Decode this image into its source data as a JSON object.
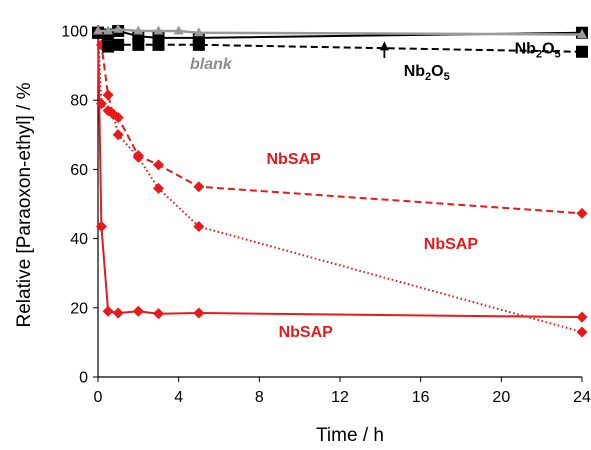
{
  "chart_data": {
    "type": "line",
    "xlabel": "Time / h",
    "ylabel": "Relative [Paraoxon-ethyl] / %",
    "xlim": [
      0,
      24
    ],
    "ylim": [
      0,
      100
    ],
    "x_ticks": [
      "0",
      "4",
      "8",
      "12",
      "16",
      "20",
      "24"
    ],
    "y_ticks": [
      "0",
      "20",
      "40",
      "60",
      "80",
      "100"
    ],
    "grid": false,
    "series": [
      {
        "color": "#e8191b",
        "line_style": "solid",
        "marker": "diamond",
        "x": [
          0,
          0.17,
          0.5,
          1,
          2,
          3,
          5,
          24
        ],
        "y": [
          100,
          43.5,
          19,
          18.5,
          19,
          18.3,
          18.5,
          17.3
        ]
      },
      {
        "color": "#e8191b",
        "line_style": "dashed",
        "marker": "diamond",
        "x": [
          0,
          0.17,
          0.5,
          0.75,
          1,
          2,
          3,
          5,
          24
        ],
        "y": [
          100,
          96,
          81.5,
          76,
          75,
          64,
          61.3,
          55,
          47.3
        ]
      },
      {
        "color": "#e8191b",
        "line_style": "dotted",
        "marker": "diamond",
        "x": [
          0,
          0.17,
          0.5,
          0.75,
          1,
          2,
          3,
          5,
          24
        ],
        "y": [
          100,
          79,
          77,
          76,
          70,
          63.5,
          54.5,
          43.5,
          13
        ]
      },
      {
        "color": "#000000",
        "line_style": "solid",
        "marker": "square",
        "x": [
          0,
          0.5,
          1,
          2,
          3,
          5,
          24
        ],
        "y": [
          99.5,
          99,
          100,
          98.5,
          98,
          98,
          99.5
        ]
      },
      {
        "color": "#000000",
        "line_style": "dashed",
        "marker": "square",
        "x": [
          0,
          0.5,
          1,
          2,
          3,
          5,
          24
        ],
        "y": [
          99.5,
          95.5,
          96,
          96,
          96,
          96,
          94
        ]
      },
      {
        "color": "#999999",
        "line_style": "solid",
        "marker": "triangle",
        "x": [
          0,
          0.5,
          1,
          2,
          3,
          4,
          5,
          24
        ],
        "y": [
          100,
          100,
          100.5,
          100,
          100,
          100,
          99.5,
          99
        ]
      }
    ],
    "annotations": [
      {
        "text": "blank",
        "color": "#8c8c8c",
        "italic": true,
        "x": 5.6,
        "y": 89
      },
      {
        "text": "Nb",
        "sub": "2",
        "text2": "O",
        "sub2": "5",
        "color": "#000000",
        "x": 16.3,
        "y": 87,
        "arrow_to": [
          14.2,
          97
        ]
      },
      {
        "text": "Nb",
        "sub": "2",
        "text2": "O",
        "sub2": "5",
        "color": "#000000",
        "x": 21.8,
        "y": 93.5
      },
      {
        "text": "NbSAP",
        "color": "#e8191b",
        "x": 9.7,
        "y": 61.5
      },
      {
        "text": "NbSAP",
        "color": "#e8191b",
        "x": 17.5,
        "y": 37
      },
      {
        "text": "NbSAP",
        "color": "#e8191b",
        "x": 10.3,
        "y": 11.5
      }
    ]
  }
}
